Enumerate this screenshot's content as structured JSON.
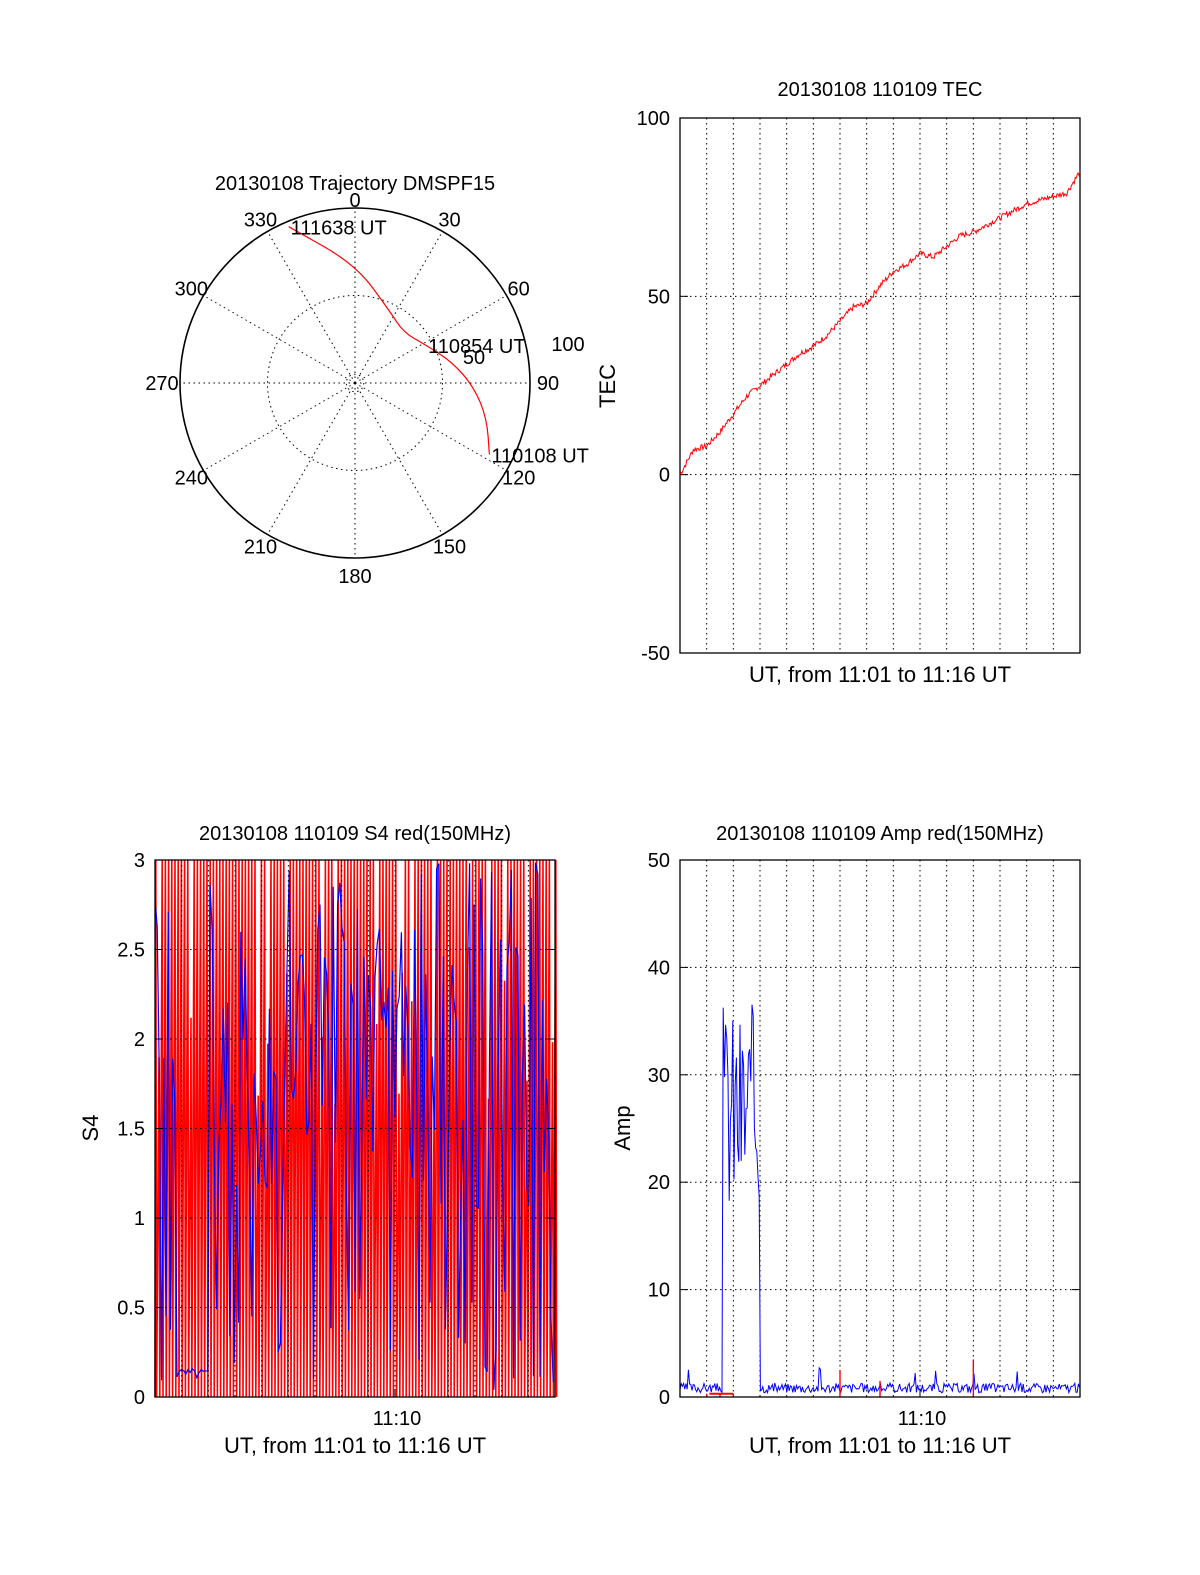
{
  "colors": {
    "red": "#ff0000",
    "blue": "#0000ff",
    "axis": "#000000",
    "background": "#ffffff"
  },
  "chart_data": [
    {
      "id": "trajectory",
      "type": "polar",
      "title": "20130108 Trajectory DMSPF15",
      "angle_labels": [
        "0",
        "30",
        "60",
        "90",
        "120",
        "150",
        "180",
        "210",
        "240",
        "270",
        "300",
        "330"
      ],
      "radial_labels": [
        "50",
        "100"
      ],
      "rlim": [
        0,
        100
      ],
      "grid": true,
      "series": [
        {
          "color": "red",
          "points": [
            {
              "azimuth": 118,
              "zenith": 87
            },
            {
              "azimuth": 105,
              "zenith": 78
            },
            {
              "azimuth": 92,
              "zenith": 68
            },
            {
              "azimuth": 78,
              "zenith": 57
            },
            {
              "azimuth": 62,
              "zenith": 46
            },
            {
              "azimuth": 44,
              "zenith": 40
            },
            {
              "azimuth": 25,
              "zenith": 46
            },
            {
              "azimuth": 0,
              "zenith": 68
            },
            {
              "azimuth": 337,
              "zenith": 97
            }
          ]
        }
      ],
      "annotations": [
        {
          "text": "110108 UT",
          "azimuth": 118,
          "zenith": 87
        },
        {
          "text": "110854 UT",
          "azimuth": 62,
          "zenith": 46
        },
        {
          "text": "111638 UT",
          "azimuth": 337,
          "zenith": 97
        }
      ]
    },
    {
      "id": "tec",
      "type": "line",
      "title": "20130108 110109 TEC",
      "xlabel": "UT, from 11:01 to 11:16 UT",
      "ylabel": "TEC",
      "xlim": [
        "11:01",
        "11:16"
      ],
      "ylim": [
        -50,
        100
      ],
      "yticks": [
        "100",
        "50",
        "0",
        "-50"
      ],
      "grid": true,
      "series": [
        {
          "color": "red",
          "x": [
            "11:01.0",
            "11:01.5",
            "11:02.0",
            "11:02.5",
            "11:03.0",
            "11:03.5",
            "11:04.0",
            "11:04.5",
            "11:05.0",
            "11:05.5",
            "11:06.0",
            "11:06.5",
            "11:07.0",
            "11:07.5",
            "11:08.0",
            "11:08.5",
            "11:09.0",
            "11:09.5",
            "11:10.0",
            "11:10.5",
            "11:11.0",
            "11:11.5",
            "11:12.0",
            "11:12.5",
            "11:13.0",
            "11:13.5",
            "11:14.0",
            "11:14.5",
            "11:15.0",
            "11:15.5",
            "11:16.0"
          ],
          "values": [
            0,
            7,
            8,
            12,
            17,
            22,
            25,
            28,
            31,
            34,
            36,
            39,
            43,
            47,
            48,
            53,
            57,
            59,
            62,
            61,
            64,
            67,
            68,
            70,
            72,
            74,
            76,
            77,
            78,
            79,
            85
          ]
        }
      ]
    },
    {
      "id": "s4",
      "type": "line",
      "title": "20130108 110109 S4 red(150MHz)",
      "xlabel": "UT, from 11:01 to 11:16 UT",
      "ylabel": "S4",
      "xlim": [
        "11:01",
        "11:16"
      ],
      "ylim": [
        0,
        3
      ],
      "yticks": [
        "3",
        "2.5",
        "2",
        "1.5",
        "1",
        "0.5",
        "0"
      ],
      "xticks": [
        "11:10"
      ],
      "grid": true,
      "series": [
        {
          "color": "red",
          "description_values": "dense oscillation spanning 0 to 3 across the whole interval"
        },
        {
          "color": "blue",
          "description_values": "dense oscillation mostly between 1 and 3, near 0.12 around 11:02-11:03"
        }
      ]
    },
    {
      "id": "amp",
      "type": "line",
      "title": "20130108 110109 Amp red(150MHz)",
      "xlabel": "UT, from 11:01 to 11:16 UT",
      "ylabel": "Amp",
      "xlim": [
        "11:01",
        "11:16"
      ],
      "ylim": [
        0,
        50
      ],
      "yticks": [
        "50",
        "40",
        "30",
        "20",
        "10",
        "0"
      ],
      "xticks": [
        "11:10"
      ],
      "grid": true,
      "series": [
        {
          "color": "blue",
          "x": [
            "11:02.0",
            "11:02.5",
            "11:03.0",
            "11:03.5",
            "11:04.0",
            "11:06.0",
            "11:07.0",
            "11:08.0",
            "11:10.0",
            "11:12.0",
            "11:14.0",
            "11:16.0"
          ],
          "values": [
            1,
            30,
            28,
            27,
            0.5,
            0.5,
            1.5,
            0.7,
            0.6,
            0.8,
            1,
            0.8
          ]
        },
        {
          "color": "red",
          "x": [
            "11:02.0",
            "11:02.5",
            "11:03.0",
            "11:07.0",
            "11:08.5",
            "11:12.0"
          ],
          "values": [
            0.3,
            0.3,
            0.3,
            2.5,
            1.5,
            3.5
          ]
        }
      ]
    }
  ]
}
